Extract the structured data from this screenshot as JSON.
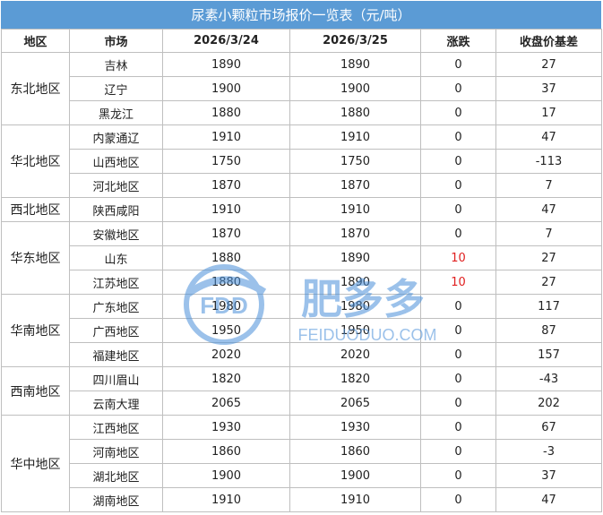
{
  "title": "尿素小颗粒市场报价一览表（元/吨）",
  "headers": [
    "地区",
    "市场",
    "2026/3/24",
    "2026/3/25",
    "涨跌",
    "收盘价基差"
  ],
  "regions": [
    {
      "name": "东北地区",
      "rows": [
        {
          "market": "吉林",
          "d1": "1890",
          "d2": "1890",
          "chg": "0",
          "basis": "27"
        },
        {
          "market": "辽宁",
          "d1": "1900",
          "d2": "1900",
          "chg": "0",
          "basis": "37"
        },
        {
          "market": "黑龙江",
          "d1": "1880",
          "d2": "1880",
          "chg": "0",
          "basis": "17"
        }
      ]
    },
    {
      "name": "华北地区",
      "rows": [
        {
          "market": "内蒙通辽",
          "d1": "1910",
          "d2": "1910",
          "chg": "0",
          "basis": "47"
        },
        {
          "market": "山西地区",
          "d1": "1750",
          "d2": "1750",
          "chg": "0",
          "basis": "-113"
        },
        {
          "market": "河北地区",
          "d1": "1870",
          "d2": "1870",
          "chg": "0",
          "basis": "7"
        }
      ]
    },
    {
      "name": "西北地区",
      "rows": [
        {
          "market": "陕西咸阳",
          "d1": "1910",
          "d2": "1910",
          "chg": "0",
          "basis": "47"
        }
      ]
    },
    {
      "name": "华东地区",
      "rows": [
        {
          "market": "安徽地区",
          "d1": "1870",
          "d2": "1870",
          "chg": "0",
          "basis": "7"
        },
        {
          "market": "山东",
          "d1": "1880",
          "d2": "1890",
          "chg": "10",
          "basis": "27",
          "highlight": true
        },
        {
          "market": "江苏地区",
          "d1": "1880",
          "d2": "1890",
          "chg": "10",
          "basis": "27",
          "highlight": true
        }
      ]
    },
    {
      "name": "华南地区",
      "rows": [
        {
          "market": "广东地区",
          "d1": "1980",
          "d2": "1980",
          "chg": "0",
          "basis": "117"
        },
        {
          "market": "广西地区",
          "d1": "1950",
          "d2": "1950",
          "chg": "0",
          "basis": "87"
        },
        {
          "market": "福建地区",
          "d1": "2020",
          "d2": "2020",
          "chg": "0",
          "basis": "157"
        }
      ]
    },
    {
      "name": "西南地区",
      "rows": [
        {
          "market": "四川眉山",
          "d1": "1820",
          "d2": "1820",
          "chg": "0",
          "basis": "-43"
        },
        {
          "market": "云南大理",
          "d1": "2065",
          "d2": "2065",
          "chg": "0",
          "basis": "202"
        }
      ]
    },
    {
      "name": "华中地区",
      "rows": [
        {
          "market": "江西地区",
          "d1": "1930",
          "d2": "1930",
          "chg": "0",
          "basis": "67"
        },
        {
          "market": "河南地区",
          "d1": "1860",
          "d2": "1860",
          "chg": "0",
          "basis": "-3"
        },
        {
          "market": "湖北地区",
          "d1": "1900",
          "d2": "1900",
          "chg": "0",
          "basis": "37"
        },
        {
          "market": "湖南地区",
          "d1": "1910",
          "d2": "1910",
          "chg": "0",
          "basis": "47"
        }
      ]
    }
  ],
  "watermark": {
    "logo_text": "FDD",
    "brand": "肥多多",
    "site": "FEIDUODUO.COM"
  },
  "colors": {
    "header_bg": "#5b9bd5",
    "up": "#e02020",
    "border": "#bfbfbf",
    "watermark": "#4a90d9"
  }
}
